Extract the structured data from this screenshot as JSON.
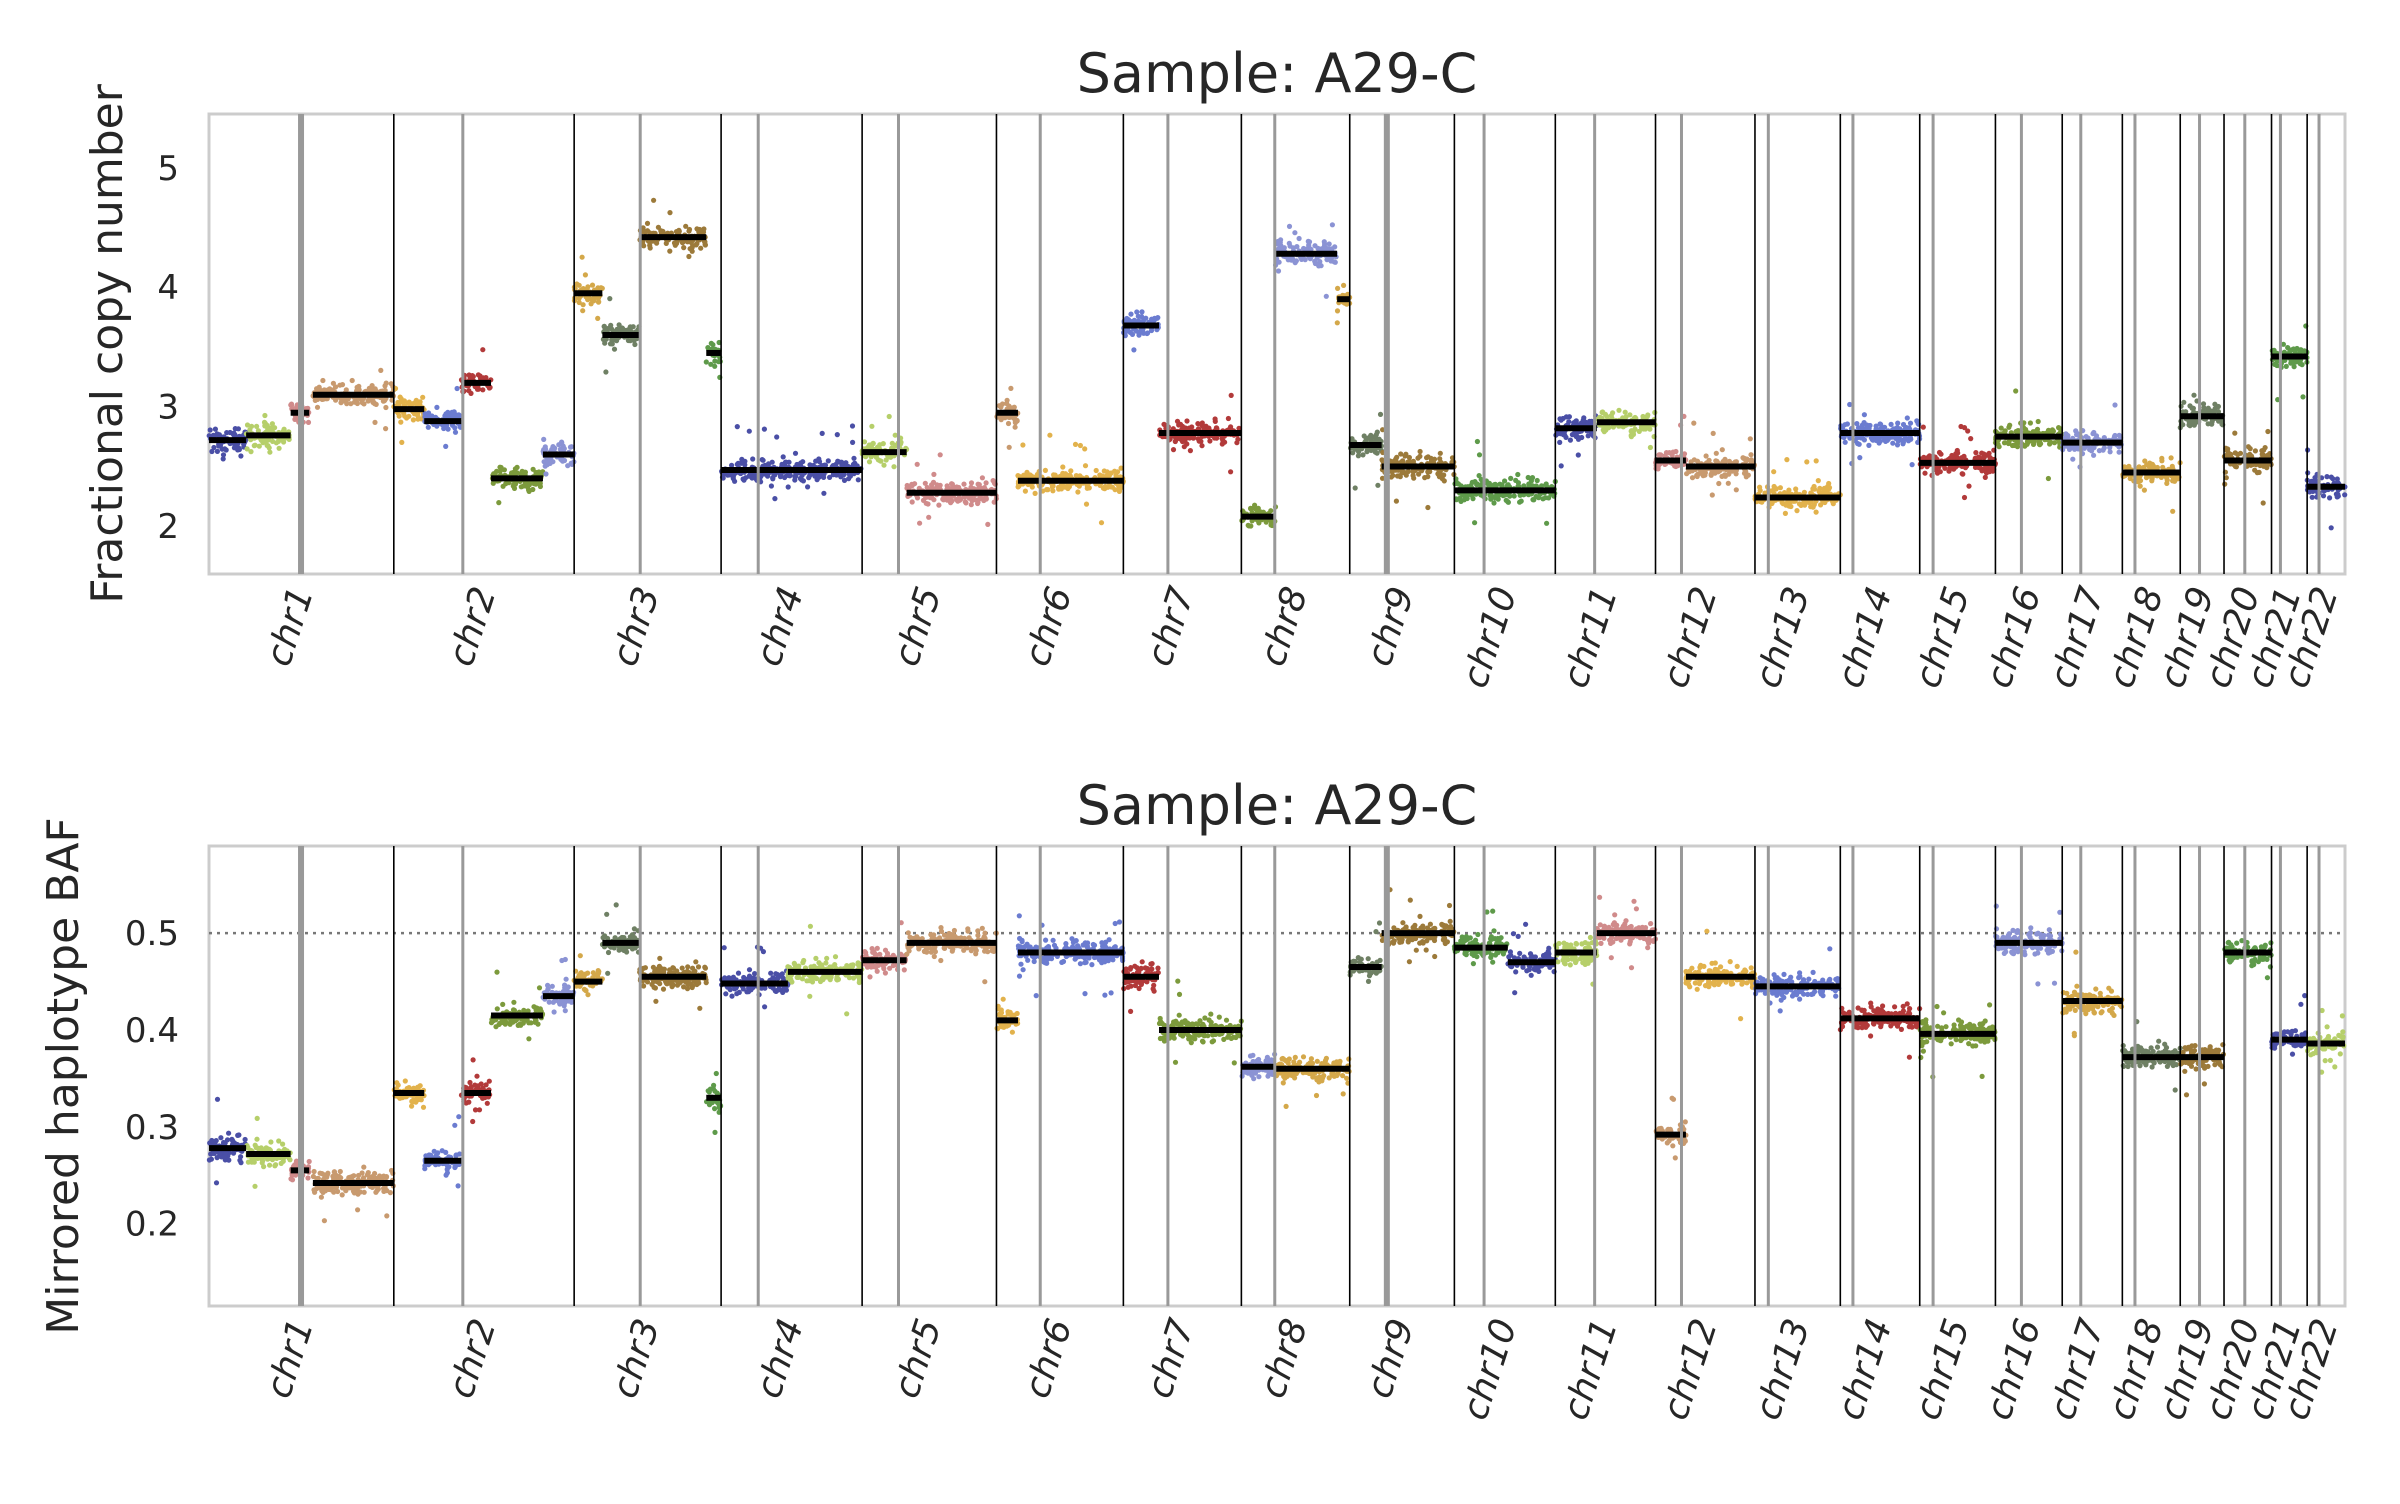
{
  "colors": {
    "palette": [
      "#4a4fa6",
      "#b6cf6a",
      "#d08b8b",
      "#c89a6f",
      "#e2b24c",
      "#6b7cd0",
      "#b23a3a",
      "#7c9a3c",
      "#8b93d4",
      "#d4a84a",
      "#6f8064",
      "#9c7a3a",
      "#5e9a4a"
    ],
    "segment": "#000000",
    "frame": "#cccccc",
    "boundary": "#000000",
    "centromere": "#999999",
    "reference_line": "#777777"
  },
  "chart_data": [
    {
      "type": "scatter",
      "title": "Sample: A29-C",
      "ylabel": "Fractional copy number",
      "xlabel": "",
      "ylim": [
        1.6,
        5.45
      ],
      "yticks": [
        2,
        3,
        4,
        5
      ],
      "grid": false,
      "chromosomes": [
        "chr1",
        "chr2",
        "chr3",
        "chr4",
        "chr5",
        "chr6",
        "chr7",
        "chr8",
        "chr9",
        "chr10",
        "chr11",
        "chr12",
        "chr13",
        "chr14",
        "chr15",
        "chr16",
        "chr17",
        "chr18",
        "chr19",
        "chr20",
        "chr21",
        "chr22"
      ],
      "chromosome_bounds": [
        0,
        249,
        492,
        690,
        880,
        1061,
        1232,
        1391,
        1537,
        1678,
        1814,
        1949,
        2083,
        2198,
        2305,
        2407,
        2497,
        2578,
        2656,
        2715,
        2779,
        2827,
        2878
      ],
      "centromeres": [
        124,
        342,
        581,
        740,
        929,
        1120,
        1292,
        1436,
        1587,
        1718,
        1867,
        1984,
        2101,
        2215,
        2323,
        2442,
        2522,
        2595,
        2682,
        2743,
        2791,
        2843
      ],
      "segments": [
        {
          "start": 0,
          "end": 50,
          "value": 2.72
        },
        {
          "start": 50,
          "end": 110,
          "value": 2.76
        },
        {
          "start": 110,
          "end": 135,
          "value": 2.95
        },
        {
          "start": 140,
          "end": 249,
          "value": 3.1
        },
        {
          "start": 249,
          "end": 290,
          "value": 2.98
        },
        {
          "start": 290,
          "end": 340,
          "value": 2.88
        },
        {
          "start": 340,
          "end": 380,
          "value": 3.2
        },
        {
          "start": 380,
          "end": 450,
          "value": 2.4
        },
        {
          "start": 450,
          "end": 492,
          "value": 2.6
        },
        {
          "start": 492,
          "end": 530,
          "value": 3.95
        },
        {
          "start": 530,
          "end": 580,
          "value": 3.6
        },
        {
          "start": 580,
          "end": 670,
          "value": 4.42
        },
        {
          "start": 670,
          "end": 690,
          "value": 3.45
        },
        {
          "start": 690,
          "end": 880,
          "value": 2.47
        },
        {
          "start": 880,
          "end": 940,
          "value": 2.62
        },
        {
          "start": 940,
          "end": 1061,
          "value": 2.28
        },
        {
          "start": 1061,
          "end": 1090,
          "value": 2.95
        },
        {
          "start": 1090,
          "end": 1232,
          "value": 2.38
        },
        {
          "start": 1232,
          "end": 1280,
          "value": 3.68
        },
        {
          "start": 1280,
          "end": 1391,
          "value": 2.78
        },
        {
          "start": 1391,
          "end": 1437,
          "value": 2.08
        },
        {
          "start": 1437,
          "end": 1520,
          "value": 4.28
        },
        {
          "start": 1520,
          "end": 1537,
          "value": 3.9
        },
        {
          "start": 1537,
          "end": 1580,
          "value": 2.68
        },
        {
          "start": 1580,
          "end": 1678,
          "value": 2.5
        },
        {
          "start": 1678,
          "end": 1814,
          "value": 2.3
        },
        {
          "start": 1814,
          "end": 1870,
          "value": 2.82
        },
        {
          "start": 1870,
          "end": 1949,
          "value": 2.87
        },
        {
          "start": 1949,
          "end": 1990,
          "value": 2.55
        },
        {
          "start": 1990,
          "end": 2083,
          "value": 2.5
        },
        {
          "start": 2083,
          "end": 2198,
          "value": 2.24
        },
        {
          "start": 2198,
          "end": 2305,
          "value": 2.78
        },
        {
          "start": 2305,
          "end": 2407,
          "value": 2.53
        },
        {
          "start": 2407,
          "end": 2497,
          "value": 2.75
        },
        {
          "start": 2497,
          "end": 2578,
          "value": 2.7
        },
        {
          "start": 2578,
          "end": 2656,
          "value": 2.45
        },
        {
          "start": 2656,
          "end": 2715,
          "value": 2.92
        },
        {
          "start": 2715,
          "end": 2779,
          "value": 2.55
        },
        {
          "start": 2779,
          "end": 2827,
          "value": 3.42
        },
        {
          "start": 2827,
          "end": 2878,
          "value": 2.33
        }
      ]
    },
    {
      "type": "scatter",
      "title": "Sample: A29-C",
      "ylabel": "Mirrored haplotype BAF",
      "xlabel": "",
      "ylim": [
        0.115,
        0.59
      ],
      "yticks": [
        0.2,
        0.3,
        0.4,
        0.5
      ],
      "reference_line": 0.5,
      "grid": false,
      "chromosomes": [
        "chr1",
        "chr2",
        "chr3",
        "chr4",
        "chr5",
        "chr6",
        "chr7",
        "chr8",
        "chr9",
        "chr10",
        "chr11",
        "chr12",
        "chr13",
        "chr14",
        "chr15",
        "chr16",
        "chr17",
        "chr18",
        "chr19",
        "chr20",
        "chr21",
        "chr22"
      ],
      "chromosome_bounds": [
        0,
        249,
        492,
        690,
        880,
        1061,
        1232,
        1391,
        1537,
        1678,
        1814,
        1949,
        2083,
        2198,
        2305,
        2407,
        2497,
        2578,
        2656,
        2715,
        2779,
        2827,
        2878
      ],
      "centromeres": [
        124,
        342,
        581,
        740,
        929,
        1120,
        1292,
        1436,
        1587,
        1718,
        1867,
        1984,
        2101,
        2215,
        2323,
        2442,
        2522,
        2595,
        2682,
        2743,
        2791,
        2843
      ],
      "segments": [
        {
          "start": 0,
          "end": 50,
          "value": 0.278
        },
        {
          "start": 50,
          "end": 110,
          "value": 0.272
        },
        {
          "start": 110,
          "end": 135,
          "value": 0.255
        },
        {
          "start": 140,
          "end": 249,
          "value": 0.242
        },
        {
          "start": 249,
          "end": 290,
          "value": 0.335
        },
        {
          "start": 290,
          "end": 340,
          "value": 0.265
        },
        {
          "start": 340,
          "end": 380,
          "value": 0.335
        },
        {
          "start": 380,
          "end": 450,
          "value": 0.415
        },
        {
          "start": 450,
          "end": 492,
          "value": 0.435
        },
        {
          "start": 492,
          "end": 530,
          "value": 0.45
        },
        {
          "start": 530,
          "end": 580,
          "value": 0.49
        },
        {
          "start": 580,
          "end": 670,
          "value": 0.455
        },
        {
          "start": 670,
          "end": 690,
          "value": 0.33
        },
        {
          "start": 690,
          "end": 780,
          "value": 0.448
        },
        {
          "start": 780,
          "end": 880,
          "value": 0.46
        },
        {
          "start": 880,
          "end": 940,
          "value": 0.472
        },
        {
          "start": 940,
          "end": 1061,
          "value": 0.49
        },
        {
          "start": 1061,
          "end": 1090,
          "value": 0.41
        },
        {
          "start": 1090,
          "end": 1232,
          "value": 0.48
        },
        {
          "start": 1232,
          "end": 1280,
          "value": 0.455
        },
        {
          "start": 1280,
          "end": 1391,
          "value": 0.4
        },
        {
          "start": 1391,
          "end": 1437,
          "value": 0.362
        },
        {
          "start": 1437,
          "end": 1537,
          "value": 0.36
        },
        {
          "start": 1537,
          "end": 1580,
          "value": 0.465
        },
        {
          "start": 1580,
          "end": 1678,
          "value": 0.5
        },
        {
          "start": 1678,
          "end": 1750,
          "value": 0.485
        },
        {
          "start": 1750,
          "end": 1814,
          "value": 0.47
        },
        {
          "start": 1814,
          "end": 1870,
          "value": 0.48
        },
        {
          "start": 1870,
          "end": 1949,
          "value": 0.5
        },
        {
          "start": 1949,
          "end": 1990,
          "value": 0.292
        },
        {
          "start": 1990,
          "end": 2083,
          "value": 0.455
        },
        {
          "start": 2083,
          "end": 2198,
          "value": 0.445
        },
        {
          "start": 2198,
          "end": 2305,
          "value": 0.412
        },
        {
          "start": 2305,
          "end": 2407,
          "value": 0.396
        },
        {
          "start": 2407,
          "end": 2497,
          "value": 0.49
        },
        {
          "start": 2497,
          "end": 2578,
          "value": 0.43
        },
        {
          "start": 2578,
          "end": 2656,
          "value": 0.372
        },
        {
          "start": 2656,
          "end": 2715,
          "value": 0.372
        },
        {
          "start": 2715,
          "end": 2779,
          "value": 0.48
        },
        {
          "start": 2779,
          "end": 2827,
          "value": 0.39
        },
        {
          "start": 2827,
          "end": 2878,
          "value": 0.386
        }
      ]
    }
  ]
}
